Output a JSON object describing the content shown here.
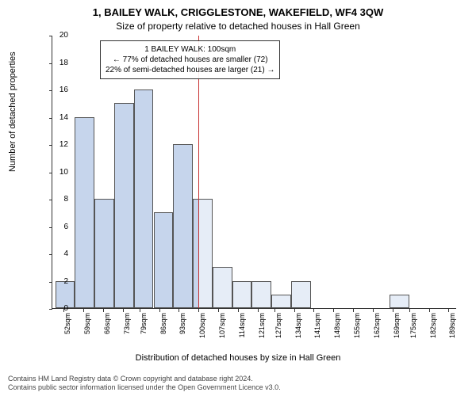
{
  "title": "1, BAILEY WALK, CRIGGLESTONE, WAKEFIELD, WF4 3QW",
  "subtitle": "Size of property relative to detached houses in Hall Green",
  "ylabel": "Number of detached properties",
  "xlabel": "Distribution of detached houses by size in Hall Green",
  "footer_line1": "Contains HM Land Registry data © Crown copyright and database right 2024.",
  "footer_line2": "Contains public sector information licensed under the Open Government Licence v3.0.",
  "chart": {
    "type": "histogram",
    "ylim": [
      0,
      20
    ],
    "yticks": [
      0,
      2,
      4,
      6,
      8,
      10,
      12,
      14,
      16,
      18,
      20
    ],
    "xticks": [
      52,
      59,
      66,
      73,
      79,
      86,
      93,
      100,
      107,
      114,
      121,
      127,
      134,
      141,
      148,
      155,
      162,
      169,
      175,
      182,
      189
    ],
    "xtick_suffix": "sqm",
    "x_start": 48,
    "x_end": 192,
    "bar_color_left": "#c6d5ec",
    "bar_color_right": "#e6edf7",
    "bar_border": "#555555",
    "split_x": 100,
    "vline_color": "#c83232",
    "bars": [
      {
        "x0": 49,
        "x1": 56,
        "y": 2
      },
      {
        "x0": 56,
        "x1": 63,
        "y": 14
      },
      {
        "x0": 63,
        "x1": 70,
        "y": 8
      },
      {
        "x0": 70,
        "x1": 77,
        "y": 15
      },
      {
        "x0": 77,
        "x1": 84,
        "y": 16
      },
      {
        "x0": 84,
        "x1": 91,
        "y": 7
      },
      {
        "x0": 91,
        "x1": 98,
        "y": 12
      },
      {
        "x0": 98,
        "x1": 105,
        "y": 8
      },
      {
        "x0": 105,
        "x1": 112,
        "y": 3
      },
      {
        "x0": 112,
        "x1": 119,
        "y": 2
      },
      {
        "x0": 119,
        "x1": 126,
        "y": 2
      },
      {
        "x0": 126,
        "x1": 133,
        "y": 1
      },
      {
        "x0": 133,
        "x1": 140,
        "y": 2
      },
      {
        "x0": 168,
        "x1": 175,
        "y": 1
      }
    ]
  },
  "annotation": {
    "line1": "1 BAILEY WALK: 100sqm",
    "line2": "← 77% of detached houses are smaller (72)",
    "line3": "22% of semi-detached houses are larger (21) →"
  }
}
